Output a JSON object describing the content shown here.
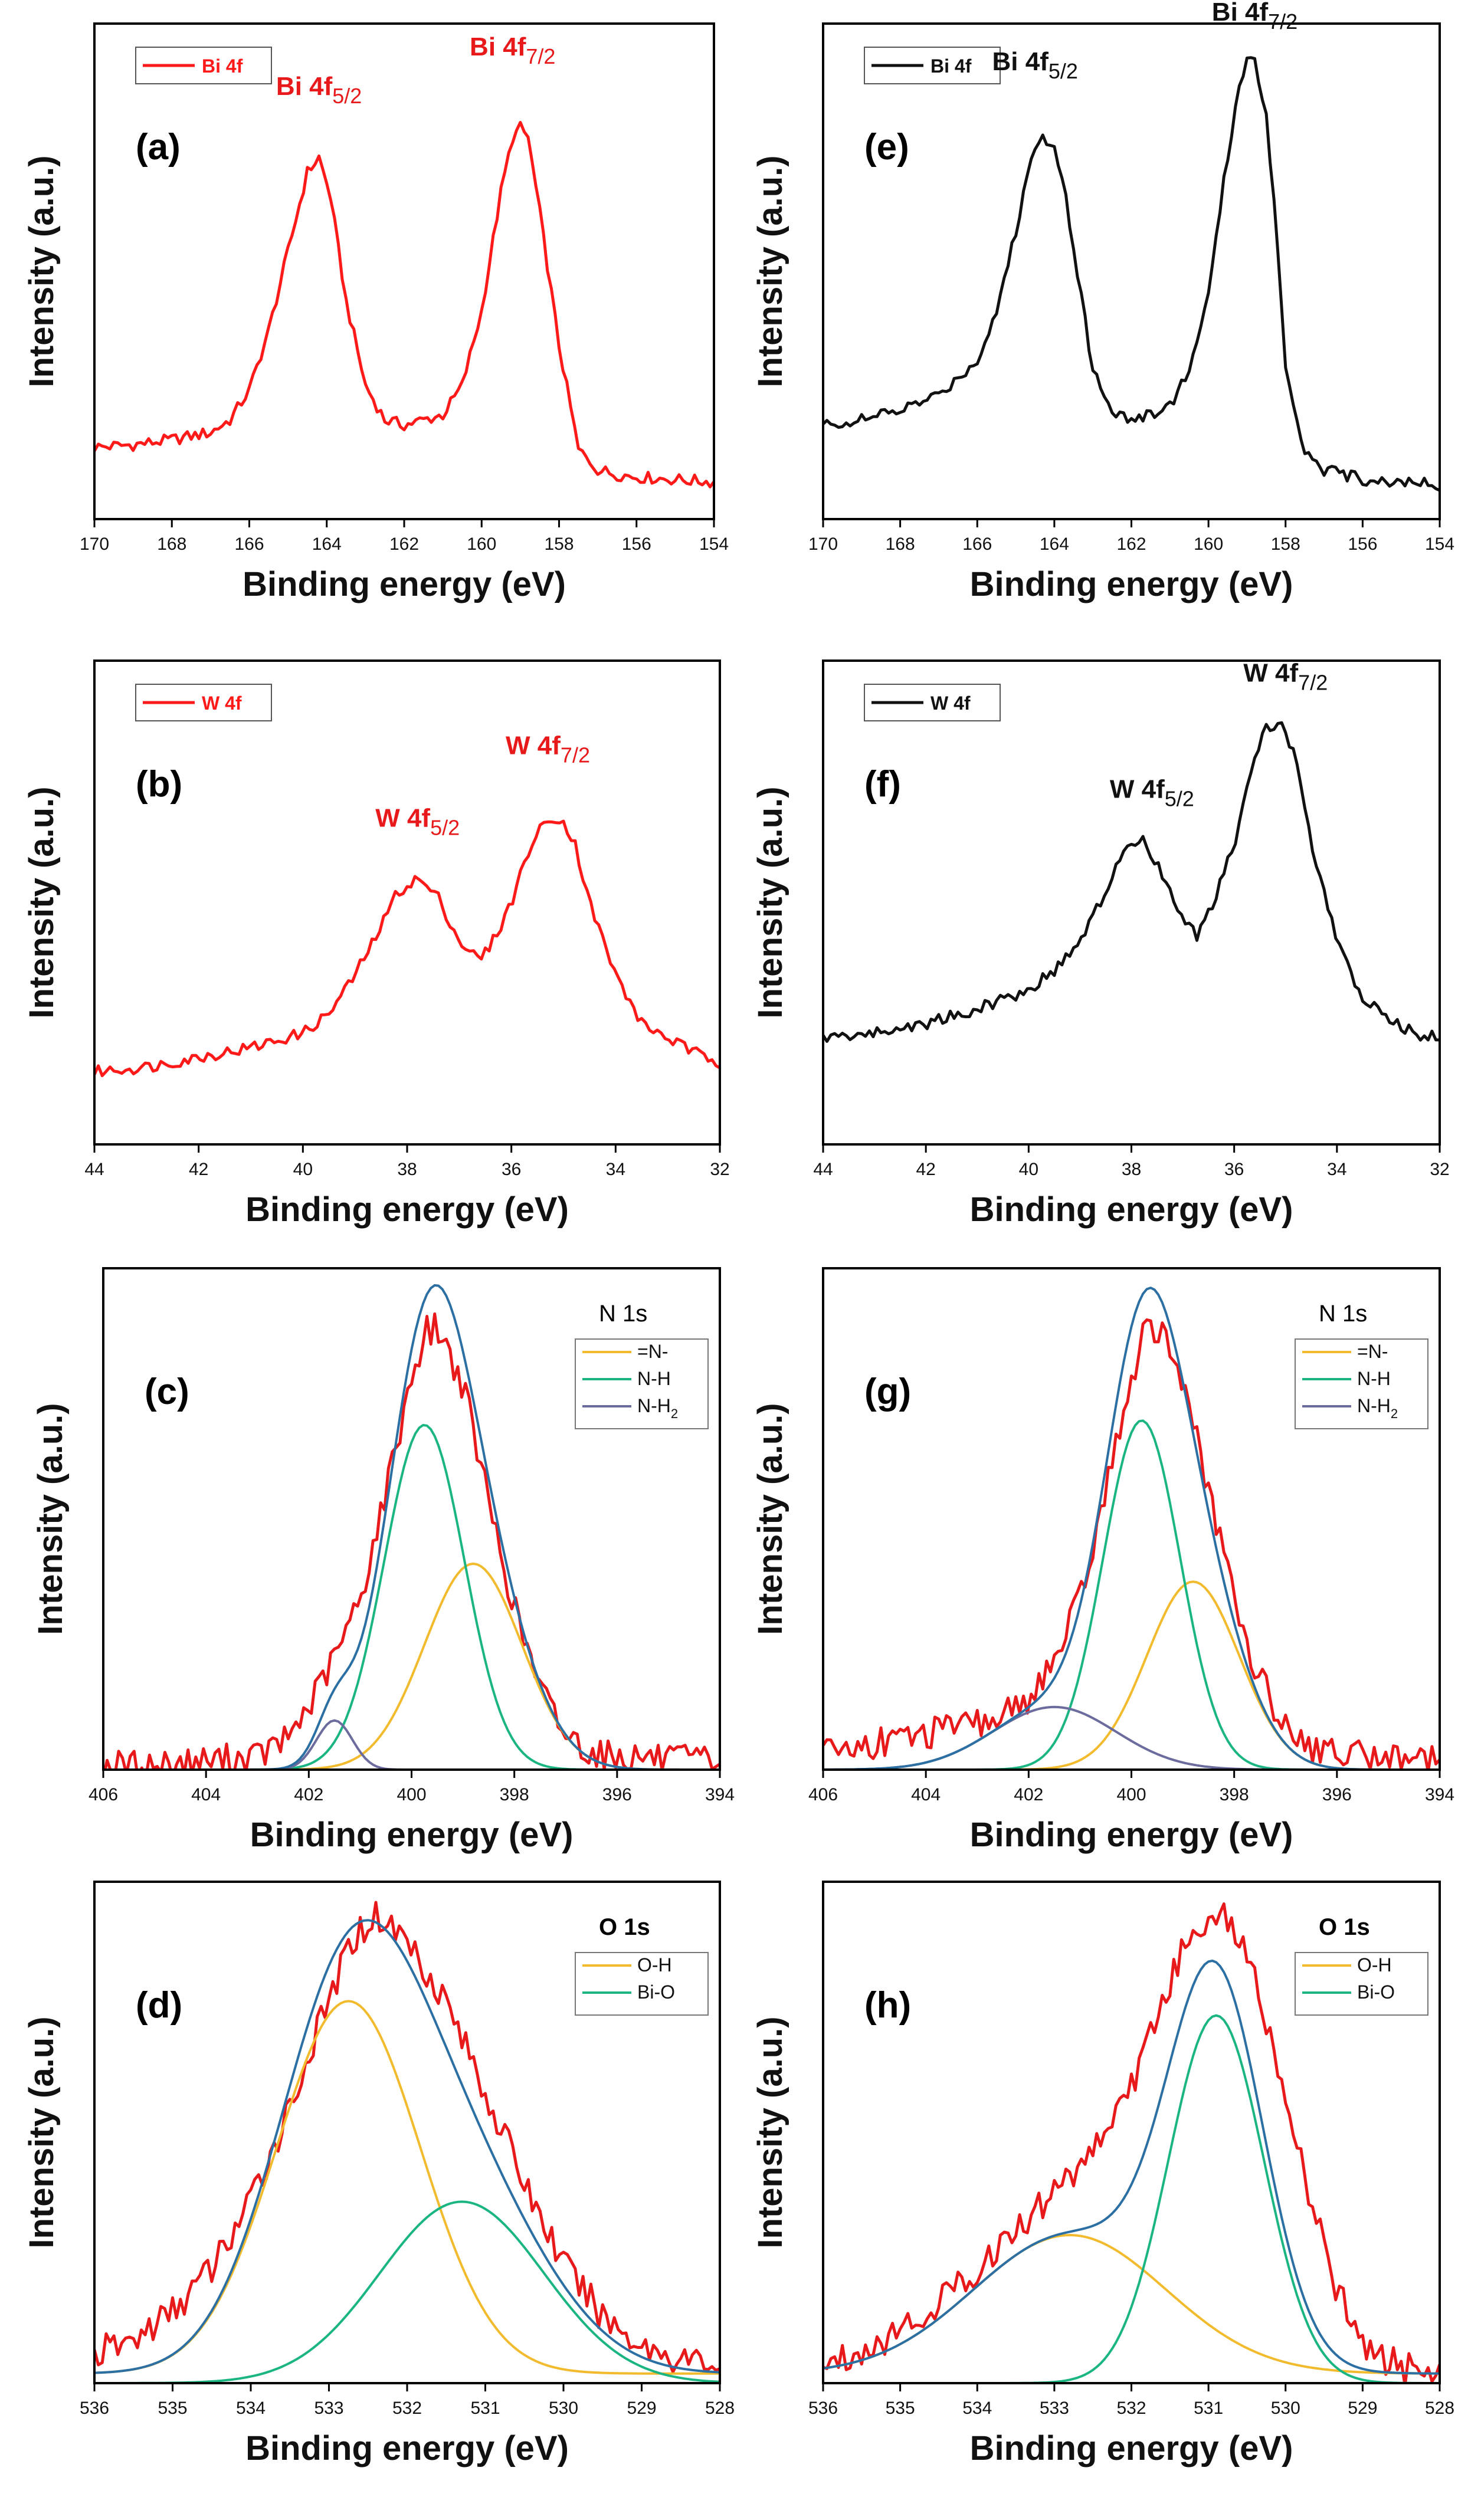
{
  "chart_data": [
    {
      "id": "a",
      "type": "line",
      "panel_label": "(a)",
      "xlabel": "Binding energy (eV)",
      "ylabel": "Intensity (a.u.)",
      "xlim": [
        170,
        154
      ],
      "ylim": [
        0,
        1
      ],
      "xticks": [
        "170",
        "168",
        "166",
        "164",
        "162",
        "160",
        "158",
        "156",
        "154"
      ],
      "legend": [
        {
          "label": "Bi 4f",
          "color": "#ff1a1a"
        }
      ],
      "peak_labels": [
        {
          "base": "Bi 4f",
          "sub": "5/2",
          "x": 164.2,
          "y": 0.82,
          "color": "#e8191b"
        },
        {
          "base": "Bi 4f",
          "sub": "7/2",
          "x": 159.2,
          "y": 0.9,
          "color": "#e8191b"
        }
      ],
      "series": [
        {
          "name": "Bi 4f",
          "role": "data",
          "color": "#ff1a1a",
          "x": [
            170,
            169,
            168,
            167,
            166.5,
            166,
            165.5,
            165,
            164.5,
            164.2,
            163.9,
            163.5,
            163,
            162.5,
            162,
            161.5,
            161,
            160.5,
            160,
            159.5,
            159.2,
            159,
            158.8,
            158.5,
            158,
            157.5,
            157,
            156.5,
            156,
            155,
            154
          ],
          "y": [
            0.145,
            0.15,
            0.16,
            0.175,
            0.2,
            0.26,
            0.38,
            0.54,
            0.7,
            0.73,
            0.65,
            0.44,
            0.27,
            0.2,
            0.19,
            0.2,
            0.21,
            0.27,
            0.42,
            0.66,
            0.77,
            0.79,
            0.77,
            0.62,
            0.35,
            0.14,
            0.1,
            0.09,
            0.085,
            0.08,
            0.075
          ]
        }
      ]
    },
    {
      "id": "b",
      "type": "line",
      "panel_label": "(b)",
      "xlabel": "Binding energy (eV)",
      "ylabel": "Intensity (a.u.)",
      "xlim": [
        44,
        32
      ],
      "ylim": [
        0,
        1
      ],
      "xticks": [
        "44",
        "42",
        "40",
        "38",
        "36",
        "34",
        "32"
      ],
      "legend": [
        {
          "label": "W 4f",
          "color": "#ff1a1a"
        }
      ],
      "peak_labels": [
        {
          "base": "W 4f",
          "sub": "5/2",
          "x": 37.8,
          "y": 0.62,
          "color": "#e8191b"
        },
        {
          "base": "W 4f",
          "sub": "7/2",
          "x": 35.3,
          "y": 0.77,
          "color": "#e8191b"
        }
      ],
      "series": [
        {
          "name": "W 4f",
          "role": "data",
          "color": "#ff1a1a",
          "x": [
            44,
            43,
            42,
            41,
            40,
            39.5,
            39,
            38.5,
            38.2,
            37.8,
            37.4,
            37,
            36.6,
            36.3,
            36,
            35.7,
            35.4,
            35.1,
            34.8,
            34.5,
            34,
            33.5,
            33,
            32.5,
            32
          ],
          "y": [
            0.15,
            0.16,
            0.18,
            0.2,
            0.23,
            0.27,
            0.35,
            0.45,
            0.52,
            0.55,
            0.51,
            0.42,
            0.38,
            0.43,
            0.5,
            0.6,
            0.66,
            0.68,
            0.63,
            0.5,
            0.35,
            0.25,
            0.22,
            0.19,
            0.17
          ]
        }
      ]
    },
    {
      "id": "c",
      "type": "line",
      "panel_label": "(c)",
      "xlabel": "Binding energy (eV)",
      "ylabel": "Intensity (a.u.)",
      "xlim": [
        406,
        394
      ],
      "ylim": [
        0,
        1.12
      ],
      "xticks": [
        "406",
        "404",
        "402",
        "400",
        "398",
        "396",
        "394"
      ],
      "corner_title": "N 1s",
      "legend": [
        {
          "label": "=N-",
          "color": "#f2bb2e"
        },
        {
          "label": "N-H",
          "color": "#1bb584"
        },
        {
          "label": "N-H",
          "sub": "2",
          "color": "#6b6b9e"
        }
      ],
      "series": [
        {
          "name": "raw",
          "role": "data",
          "color": "#e8191b",
          "x": [
            406,
            405,
            404,
            403,
            402.5,
            402,
            401.5,
            401,
            400.5,
            400,
            399.7,
            399.5,
            399,
            398.5,
            398,
            397.5,
            397,
            396.5,
            396,
            395.5,
            395,
            394.5,
            394
          ],
          "y": [
            0.01,
            0.01,
            0.02,
            0.03,
            0.06,
            0.14,
            0.25,
            0.38,
            0.62,
            0.88,
            0.98,
            0.99,
            0.86,
            0.6,
            0.36,
            0.18,
            0.08,
            0.04,
            0.03,
            0.03,
            0.02,
            0.02,
            0.02
          ]
        },
        {
          "name": "=N-",
          "role": "fit",
          "color": "#f2bb2e",
          "peak": {
            "center": 398.8,
            "height": 0.46,
            "sigma": 0.95,
            "base": 0.0
          }
        },
        {
          "name": "N-H",
          "role": "fit",
          "color": "#1bb584",
          "peak": {
            "center": 399.75,
            "height": 0.77,
            "sigma": 0.78,
            "base": 0.0
          }
        },
        {
          "name": "N-H2",
          "role": "fit",
          "color": "#6b6b9e",
          "peak": {
            "center": 401.5,
            "height": 0.11,
            "sigma": 0.35,
            "base": 0.0
          }
        },
        {
          "name": "envelope",
          "role": "fit",
          "color": "#2c6fa3",
          "sum_of_fits": true
        }
      ]
    },
    {
      "id": "d",
      "type": "line",
      "panel_label": "(d)",
      "xlabel": "Binding energy (eV)",
      "ylabel": "Intensity (a.u.)",
      "xlim": [
        536,
        528
      ],
      "ylim": [
        0,
        1.05
      ],
      "xticks": [
        "536",
        "535",
        "534",
        "533",
        "532",
        "531",
        "530",
        "529",
        "528"
      ],
      "corner_title": "O 1s",
      "legend": [
        {
          "label": "O-H",
          "color": "#f2bb2e"
        },
        {
          "label": "Bi-O",
          "color": "#1bb584"
        }
      ],
      "series": [
        {
          "name": "raw",
          "role": "data",
          "color": "#e8191b",
          "x": [
            536,
            535.5,
            535,
            534.5,
            534,
            533.5,
            533,
            532.7,
            532.4,
            532,
            531.5,
            531,
            530.5,
            530,
            529.5,
            529,
            528.5,
            528
          ],
          "y": [
            0.06,
            0.09,
            0.15,
            0.24,
            0.38,
            0.58,
            0.8,
            0.93,
            0.98,
            0.93,
            0.8,
            0.61,
            0.42,
            0.25,
            0.14,
            0.08,
            0.05,
            0.04
          ]
        },
        {
          "name": "O-H",
          "role": "fit",
          "color": "#f2bb2e",
          "peak": {
            "center": 532.75,
            "height": 0.78,
            "sigma": 0.92,
            "base": 0.02
          }
        },
        {
          "name": "Bi-O",
          "role": "fit",
          "color": "#1bb584",
          "peak": {
            "center": 531.3,
            "height": 0.38,
            "sigma": 1.05,
            "base": 0.0
          }
        },
        {
          "name": "envelope",
          "role": "fit",
          "color": "#2c6fa3",
          "sum_of_fits": true
        }
      ]
    },
    {
      "id": "e",
      "type": "line",
      "panel_label": "(e)",
      "xlabel": "Binding energy (eV)",
      "ylabel": "Intensity (a.u.)",
      "xlim": [
        170,
        154
      ],
      "ylim": [
        0,
        1
      ],
      "xticks": [
        "170",
        "168",
        "166",
        "164",
        "162",
        "160",
        "158",
        "156",
        "154"
      ],
      "legend": [
        {
          "label": "Bi 4f",
          "color": "#111111"
        }
      ],
      "peak_labels": [
        {
          "base": "Bi 4f",
          "sub": "5/2",
          "x": 164.5,
          "y": 0.87,
          "color": "#111111"
        },
        {
          "base": "Bi 4f",
          "sub": "7/2",
          "x": 158.8,
          "y": 0.97,
          "color": "#111111"
        }
      ],
      "series": [
        {
          "name": "Bi 4f",
          "role": "data",
          "color": "#111111",
          "x": [
            170,
            169,
            168,
            167,
            166,
            165.5,
            165,
            164.6,
            164.3,
            164,
            163.7,
            163.3,
            163,
            162.5,
            162,
            161.5,
            161,
            160.5,
            160,
            159.6,
            159.2,
            159,
            158.8,
            158.5,
            158.2,
            158,
            157.5,
            157,
            156.5,
            156,
            155,
            154
          ],
          "y": [
            0.19,
            0.2,
            0.22,
            0.25,
            0.32,
            0.42,
            0.58,
            0.73,
            0.77,
            0.76,
            0.65,
            0.45,
            0.3,
            0.22,
            0.2,
            0.21,
            0.23,
            0.3,
            0.45,
            0.68,
            0.88,
            0.93,
            0.92,
            0.82,
            0.55,
            0.3,
            0.14,
            0.1,
            0.09,
            0.08,
            0.075,
            0.07
          ]
        }
      ]
    },
    {
      "id": "f",
      "type": "line",
      "panel_label": "(f)",
      "xlabel": "Binding energy (eV)",
      "ylabel": "Intensity (a.u.)",
      "xlim": [
        44,
        32
      ],
      "ylim": [
        0,
        1
      ],
      "xticks": [
        "44",
        "42",
        "40",
        "38",
        "36",
        "34",
        "32"
      ],
      "legend": [
        {
          "label": "W 4f",
          "color": "#111111"
        }
      ],
      "peak_labels": [
        {
          "base": "W 4f",
          "sub": "5/2",
          "x": 37.6,
          "y": 0.68,
          "color": "#111111"
        },
        {
          "base": "W 4f",
          "sub": "7/2",
          "x": 35.0,
          "y": 0.92,
          "color": "#111111"
        }
      ],
      "series": [
        {
          "name": "W 4f",
          "role": "data",
          "color": "#111111",
          "x": [
            44,
            43,
            42,
            41,
            40,
            39.5,
            39,
            38.5,
            38.2,
            37.8,
            37.4,
            37,
            36.7,
            36.4,
            36,
            35.7,
            35.4,
            35.1,
            34.8,
            34.5,
            34,
            33.5,
            33,
            32.5,
            32
          ],
          "y": [
            0.22,
            0.23,
            0.25,
            0.28,
            0.32,
            0.36,
            0.42,
            0.52,
            0.6,
            0.63,
            0.56,
            0.46,
            0.43,
            0.5,
            0.62,
            0.76,
            0.86,
            0.87,
            0.8,
            0.62,
            0.42,
            0.3,
            0.26,
            0.23,
            0.22
          ]
        }
      ]
    },
    {
      "id": "g",
      "type": "line",
      "panel_label": "(g)",
      "xlabel": "Binding energy (eV)",
      "ylabel": "Intensity (a.u.)",
      "xlim": [
        406,
        394
      ],
      "ylim": [
        0,
        1.12
      ],
      "xticks": [
        "406",
        "404",
        "402",
        "400",
        "398",
        "396",
        "394"
      ],
      "corner_title": "N 1s",
      "legend": [
        {
          "label": "=N-",
          "color": "#f2bb2e"
        },
        {
          "label": "N-H",
          "color": "#1bb584"
        },
        {
          "label": "N-H",
          "sub": "2",
          "color": "#6b6b9e"
        }
      ],
      "series": [
        {
          "name": "raw",
          "role": "data",
          "color": "#e8191b",
          "x": [
            406,
            405,
            404,
            403,
            402.5,
            402,
            401.5,
            401,
            400.5,
            400,
            399.7,
            399.4,
            399,
            398.5,
            398,
            397.5,
            397,
            396.5,
            396,
            395,
            394
          ],
          "y": [
            0.04,
            0.06,
            0.08,
            0.1,
            0.12,
            0.16,
            0.24,
            0.38,
            0.62,
            0.88,
            0.99,
            0.98,
            0.87,
            0.62,
            0.38,
            0.2,
            0.1,
            0.05,
            0.04,
            0.03,
            0.03
          ]
        },
        {
          "name": "=N-",
          "role": "fit",
          "color": "#f2bb2e",
          "peak": {
            "center": 398.8,
            "height": 0.42,
            "sigma": 0.9,
            "base": 0.0
          }
        },
        {
          "name": "N-H",
          "role": "fit",
          "color": "#1bb584",
          "peak": {
            "center": 399.8,
            "height": 0.78,
            "sigma": 0.75,
            "base": 0.0
          }
        },
        {
          "name": "N-H2",
          "role": "fit",
          "color": "#6b6b9e",
          "peak": {
            "center": 401.5,
            "height": 0.14,
            "sigma": 1.2,
            "base": 0.0
          }
        },
        {
          "name": "envelope",
          "role": "fit",
          "color": "#2c6fa3",
          "sum_of_fits": true
        }
      ]
    },
    {
      "id": "h",
      "type": "line",
      "panel_label": "(h)",
      "xlabel": "Binding energy (eV)",
      "ylabel": "Intensity (a.u.)",
      "xlim": [
        536,
        528
      ],
      "ylim": [
        0,
        1.05
      ],
      "xticks": [
        "536",
        "535",
        "534",
        "533",
        "532",
        "531",
        "530",
        "529",
        "528"
      ],
      "corner_title": "O 1s",
      "legend": [
        {
          "label": "O-H",
          "color": "#f2bb2e"
        },
        {
          "label": "Bi-O",
          "color": "#1bb584"
        }
      ],
      "series": [
        {
          "name": "raw",
          "role": "data",
          "color": "#e8191b",
          "x": [
            536,
            535.5,
            535,
            534.5,
            534,
            533.5,
            533,
            532.5,
            532,
            531.6,
            531.2,
            530.9,
            530.6,
            530.2,
            529.8,
            529.4,
            529,
            528.5,
            528
          ],
          "y": [
            0.04,
            0.07,
            0.11,
            0.17,
            0.24,
            0.32,
            0.4,
            0.49,
            0.62,
            0.8,
            0.95,
            0.99,
            0.94,
            0.74,
            0.46,
            0.22,
            0.08,
            0.03,
            0.02
          ]
        },
        {
          "name": "O-H",
          "role": "fit",
          "color": "#f2bb2e",
          "peak": {
            "center": 532.8,
            "height": 0.29,
            "sigma": 1.25,
            "base": 0.02
          }
        },
        {
          "name": "Bi-O",
          "role": "fit",
          "color": "#1bb584",
          "peak": {
            "center": 530.9,
            "height": 0.77,
            "sigma": 0.62,
            "base": 0.0
          }
        },
        {
          "name": "envelope",
          "role": "fit",
          "color": "#2c6fa3",
          "sum_of_fits": true
        }
      ]
    }
  ]
}
